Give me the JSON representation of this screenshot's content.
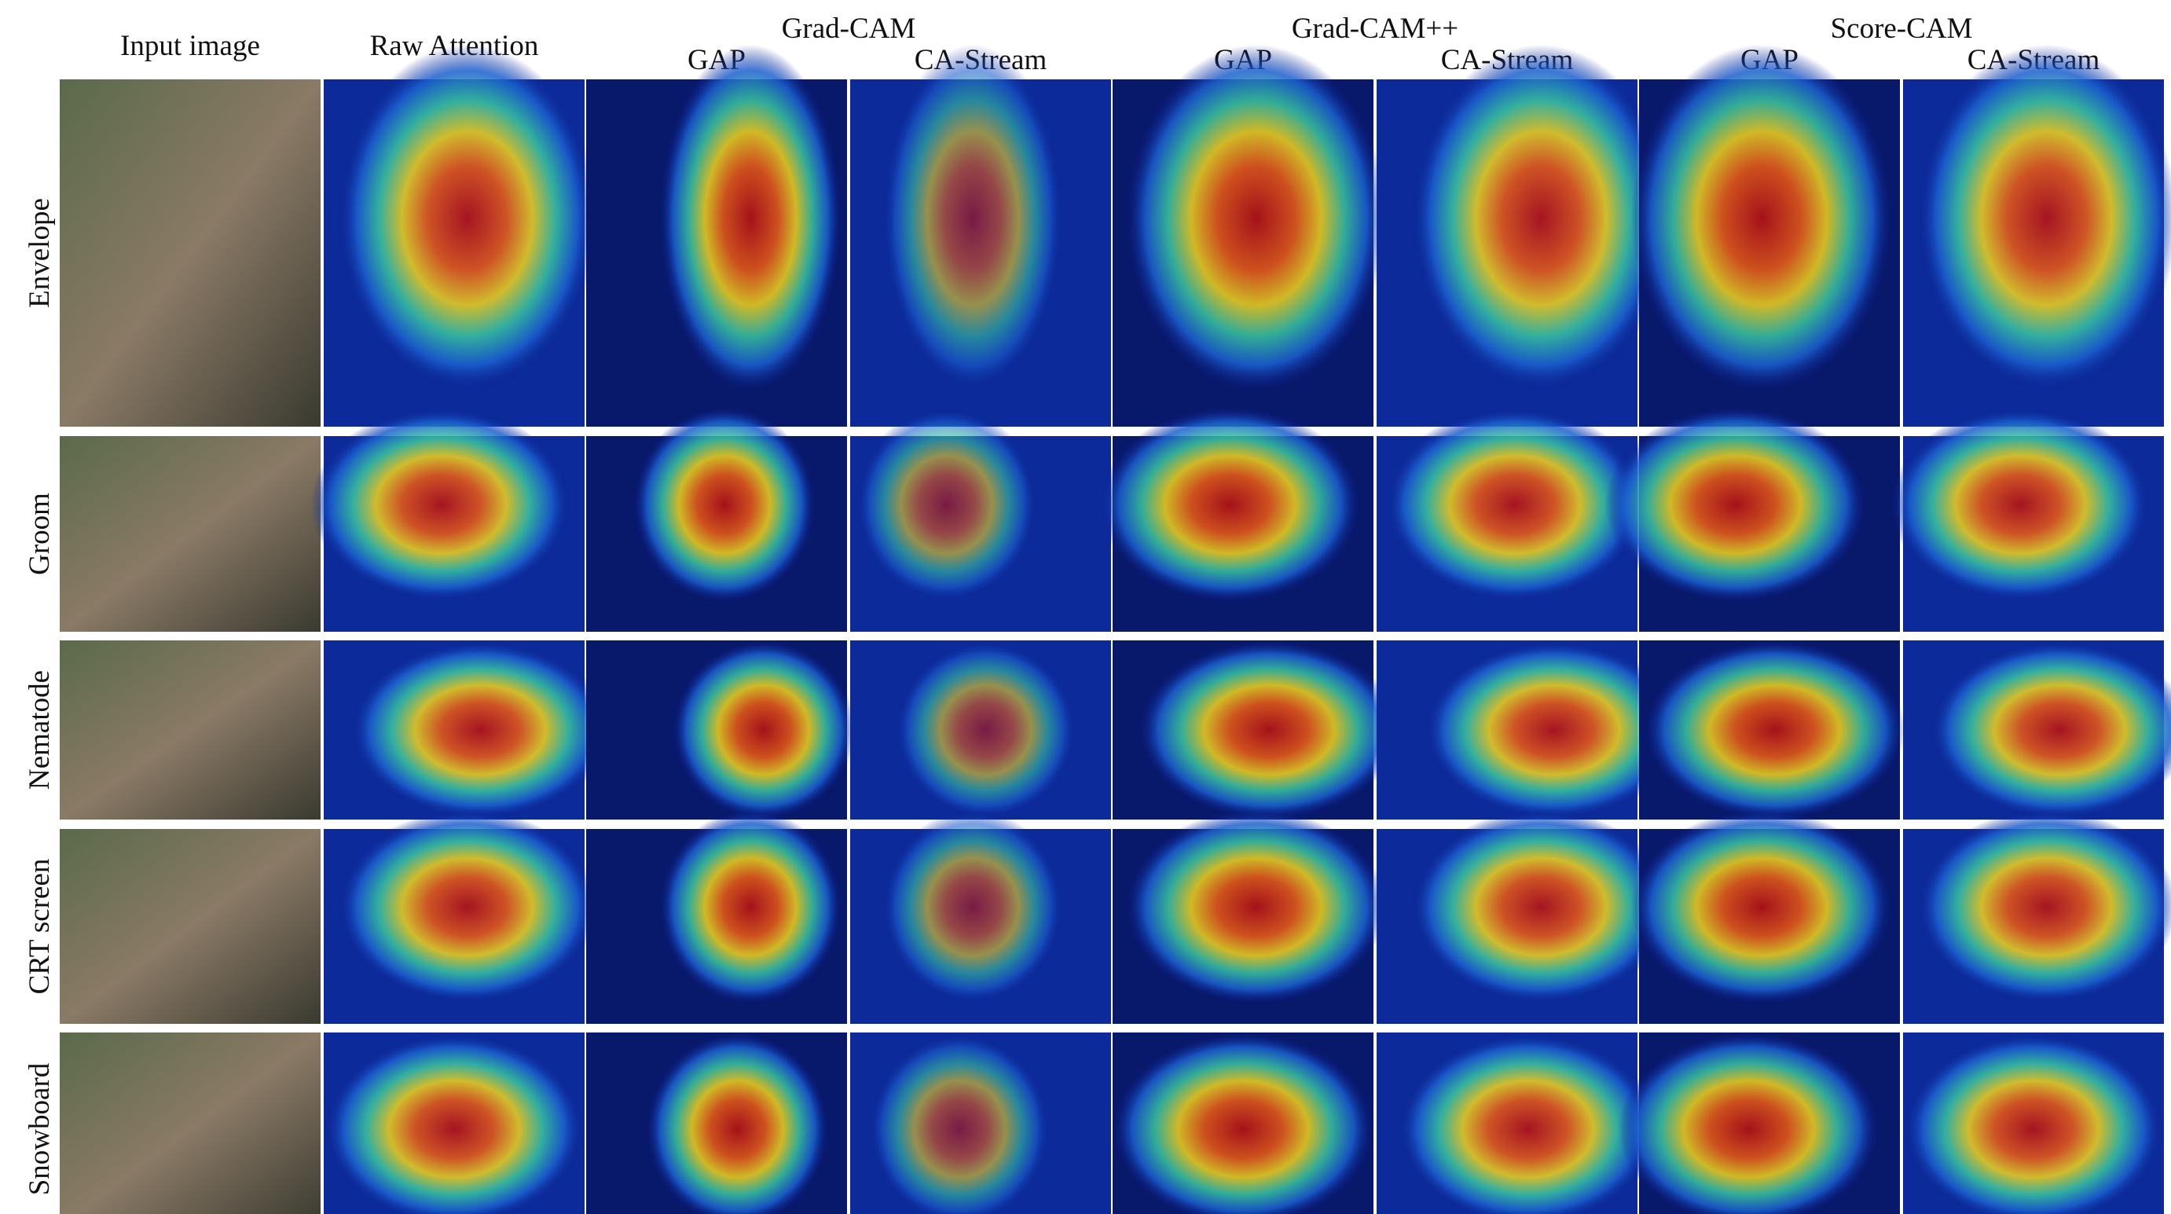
{
  "header": {
    "columns": [
      "Input image",
      "Raw Attention"
    ],
    "groups": [
      {
        "title": "Grad-CAM",
        "subcolumns": [
          "GAP",
          "CA-Stream"
        ]
      },
      {
        "title": "Grad-CAM++",
        "subcolumns": [
          "GAP",
          "CA-Stream"
        ]
      },
      {
        "title": "Score-CAM",
        "subcolumns": [
          "GAP",
          "CA-Stream"
        ]
      }
    ]
  },
  "rows": [
    "Envelope",
    "Groom",
    "Nematode",
    "CRT screen",
    "Snowboard"
  ]
}
